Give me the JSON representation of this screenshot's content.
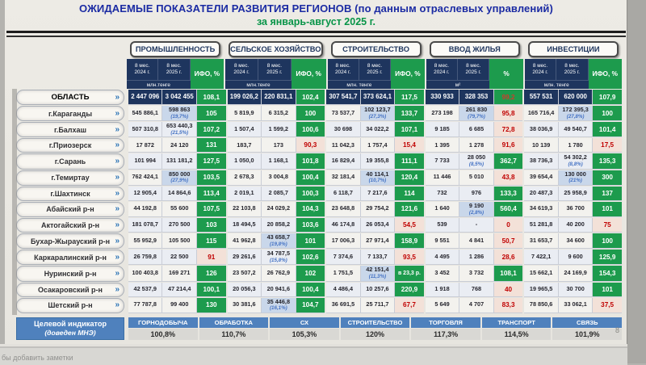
{
  "title": {
    "line1": "ОЖИДАЕМЫЕ ПОКАЗАТЕЛИ РАЗВИТИЯ РЕГИОНОВ (по данным отраслевых управлений)",
    "line2": "за январь-август 2025 г."
  },
  "icons": {
    "chevron": "»"
  },
  "colors": {
    "header_navy": "#1e355e",
    "positive_green": "#1d9b4d",
    "negative_red": "#c00000",
    "negative_bg": "#f3e1d8",
    "note_blue": "#4472c4",
    "target_blue": "#4f81bd",
    "title_blue": "#1b2ba3",
    "title_green": "#079447"
  },
  "table": {
    "groups": [
      {
        "name": "ПРОМЫШЛЕННОСТЬ",
        "col2024": "8 мес. 2024 г.",
        "col2025": "8 мес. 2025 г.",
        "ifo_label": "ИФО, %",
        "units": "млн.тенге"
      },
      {
        "name": "СЕЛЬСКОЕ ХОЗЯЙСТВО",
        "col2024": "8 мес. 2024 г.",
        "col2025": "8 мес. 2025 г.",
        "ifo_label": "ИФО, %",
        "units": "млн.тенге"
      },
      {
        "name": "СТРОИТЕЛЬСТВО",
        "col2024": "8 мес. 2024 г.",
        "col2025": "8 мес. 2025 г.",
        "ifo_label": "ИФО, %",
        "units": "млн. тенге"
      },
      {
        "name": "ВВОД ЖИЛЬЯ",
        "col2024": "8 мес. 2024 г.",
        "col2025": "8 мес. 2025 г.",
        "ifo_label": "%",
        "units": "м²"
      },
      {
        "name": "ИНВЕСТИЦИИ",
        "col2024": "8 мес. 2024 г.",
        "col2025": "8 мес. 2025 г.",
        "ifo_label": "ИФО, %",
        "units": "млн. тенге"
      }
    ],
    "rows": [
      {
        "label": "ОБЛАСТЬ",
        "cells": [
          {
            "a": "2 447 096",
            "b": "3 042 455",
            "i": "108,1",
            "c": "g"
          },
          {
            "a": "199 026,2",
            "b": "220 831,1",
            "i": "102,4",
            "c": "g"
          },
          {
            "a": "307 541,7",
            "b": "373 624,1",
            "i": "117,5",
            "c": "g"
          },
          {
            "a": "330 933",
            "b": "328 353",
            "i": "99,2",
            "c": "rg"
          },
          {
            "a": "557 531",
            "b": "620 000",
            "i": "107,9",
            "c": "g"
          }
        ]
      },
      {
        "label": "г.Караганды",
        "cells": [
          {
            "a": "545 886,1",
            "b": "598 863",
            "p": "(19,7%)",
            "i": "105",
            "c": "g"
          },
          {
            "a": "5 819,9",
            "b": "6 315,2",
            "i": "100",
            "c": "g"
          },
          {
            "a": "73 537,7",
            "b": "102 123,7",
            "p": "(27,3%)",
            "i": "133,7",
            "c": "g"
          },
          {
            "a": "273 198",
            "b": "261 830",
            "p": "(79,7%)",
            "i": "95,8",
            "c": "r"
          },
          {
            "a": "165 716,4",
            "b": "172 395,3",
            "p": "(27,8%)",
            "i": "100",
            "c": "g"
          }
        ]
      },
      {
        "label": "г.Балхаш",
        "cells": [
          {
            "a": "507 310,8",
            "b": "653 440,3",
            "p": "(21,5%)",
            "i": "107,2",
            "c": "g"
          },
          {
            "a": "1 507,4",
            "b": "1 599,2",
            "i": "100,6",
            "c": "g"
          },
          {
            "a": "30 698",
            "b": "34 022,2",
            "i": "107,1",
            "c": "g"
          },
          {
            "a": "9 185",
            "b": "6 685",
            "i": "72,8",
            "c": "r"
          },
          {
            "a": "38 036,9",
            "b": "49 540,7",
            "i": "101,4",
            "c": "g"
          }
        ]
      },
      {
        "label": "г.Приозерск",
        "cells": [
          {
            "a": "17 872",
            "b": "24 120",
            "i": "131",
            "c": "g"
          },
          {
            "a": "183,7",
            "b": "173",
            "i": "90,3",
            "c": "r"
          },
          {
            "a": "11 042,3",
            "b": "1 757,4",
            "i": "15,4",
            "c": "r"
          },
          {
            "a": "1 395",
            "b": "1 278",
            "i": "91,6",
            "c": "r"
          },
          {
            "a": "10 139",
            "b": "1 780",
            "i": "17,5",
            "c": "r"
          }
        ]
      },
      {
        "label": "г.Сарань",
        "cells": [
          {
            "a": "101 994",
            "b": "131 181,2",
            "i": "127,5",
            "c": "g"
          },
          {
            "a": "1 050,0",
            "b": "1 168,1",
            "i": "101,8",
            "c": "g"
          },
          {
            "a": "16 829,4",
            "b": "19 355,8",
            "i": "111,1",
            "c": "g"
          },
          {
            "a": "7 733",
            "b": "28 050",
            "p": "(8,5%)",
            "i": "362,7",
            "c": "g"
          },
          {
            "a": "38 736,3",
            "b": "54 302,2",
            "p": "(8,8%)",
            "i": "135,3",
            "c": "g"
          }
        ]
      },
      {
        "label": "г.Темиртау",
        "cells": [
          {
            "a": "762 424,1",
            "b": "850 000",
            "p": "(27,9%)",
            "i": "103,5",
            "c": "g"
          },
          {
            "a": "2 678,3",
            "b": "3 004,8",
            "i": "100,4",
            "c": "g"
          },
          {
            "a": "32 181,4",
            "b": "40 114,1",
            "p": "(10,7%)",
            "i": "120,4",
            "c": "g"
          },
          {
            "a": "11 446",
            "b": "5 010",
            "i": "43,8",
            "c": "r"
          },
          {
            "a": "39 654,4",
            "b": "130 000",
            "p": "(21%)",
            "i": "300",
            "c": "g"
          }
        ]
      },
      {
        "label": "г.Шахтинск",
        "cells": [
          {
            "a": "12 905,4",
            "b": "14 864,6",
            "i": "113,4",
            "c": "g"
          },
          {
            "a": "2 019,1",
            "b": "2 085,7",
            "i": "100,3",
            "c": "g"
          },
          {
            "a": "6 118,7",
            "b": "7 217,6",
            "i": "114",
            "c": "g"
          },
          {
            "a": "732",
            "b": "976",
            "i": "133,3",
            "c": "g"
          },
          {
            "a": "20 487,3",
            "b": "25 958,9",
            "i": "137",
            "c": "g"
          }
        ]
      },
      {
        "label": "Абайский р-н",
        "cells": [
          {
            "a": "44 192,8",
            "b": "55 600",
            "i": "107,5",
            "c": "g"
          },
          {
            "a": "22 103,8",
            "b": "24 029,2",
            "i": "104,3",
            "c": "g"
          },
          {
            "a": "23 648,8",
            "b": "29 754,2",
            "i": "121,6",
            "c": "g"
          },
          {
            "a": "1 640",
            "b": "9 190",
            "p": "(2,8%)",
            "i": "560,4",
            "c": "g"
          },
          {
            "a": "34 619,3",
            "b": "36 700",
            "i": "101",
            "c": "g"
          }
        ]
      },
      {
        "label": "Актогайский р-н",
        "cells": [
          {
            "a": "181 078,7",
            "b": "270 500",
            "i": "103",
            "c": "g"
          },
          {
            "a": "18 494,5",
            "b": "20 858,2",
            "i": "103,6",
            "c": "g"
          },
          {
            "a": "46 174,8",
            "b": "26 053,4",
            "i": "54,5",
            "c": "r"
          },
          {
            "a": "539",
            "b": "-",
            "i": "0",
            "c": "r"
          },
          {
            "a": "51 281,8",
            "b": "40 200",
            "i": "75",
            "c": "r"
          }
        ]
      },
      {
        "label": "Бухар-Жырауский р-н",
        "cells": [
          {
            "a": "55 952,9",
            "b": "105 500",
            "i": "115",
            "c": "g"
          },
          {
            "a": "41 962,8",
            "b": "43 658,7",
            "p": "(19,8%)",
            "i": "101",
            "c": "g"
          },
          {
            "a": "17 006,3",
            "b": "27 971,4",
            "i": "158,9",
            "c": "g"
          },
          {
            "a": "9 551",
            "b": "4 841",
            "i": "50,7",
            "c": "r"
          },
          {
            "a": "31 653,7",
            "b": "34 600",
            "i": "100",
            "c": "g"
          }
        ]
      },
      {
        "label": "Каркаралинский р-н",
        "cells": [
          {
            "a": "26 759,8",
            "b": "22 500",
            "i": "91",
            "c": "r"
          },
          {
            "a": "29 261,6",
            "b": "34 787,5",
            "p": "(15,8%)",
            "i": "102,6",
            "c": "g"
          },
          {
            "a": "7 374,6",
            "b": "7 133,7",
            "i": "93,5",
            "c": "r"
          },
          {
            "a": "4 495",
            "b": "1 286",
            "i": "28,6",
            "c": "r"
          },
          {
            "a": "7 422,1",
            "b": "9 600",
            "i": "125,9",
            "c": "g"
          }
        ]
      },
      {
        "label": "Нуринский р-н",
        "cells": [
          {
            "a": "100 403,8",
            "b": "169 271",
            "i": "126",
            "c": "g"
          },
          {
            "a": "23 507,2",
            "b": "26 762,9",
            "i": "102",
            "c": "g"
          },
          {
            "a": "1 751,5",
            "b": "42 151,4",
            "p": "(11,3%)",
            "i": "в 23,3 р.",
            "c": "g"
          },
          {
            "a": "3 452",
            "b": "3 732",
            "i": "108,1",
            "c": "g"
          },
          {
            "a": "15 662,1",
            "b": "24 169,9",
            "i": "154,3",
            "c": "g"
          }
        ]
      },
      {
        "label": "Осакаровский р-н",
        "cells": [
          {
            "a": "42 537,9",
            "b": "47 214,4",
            "i": "100,1",
            "c": "g"
          },
          {
            "a": "20 056,3",
            "b": "20 941,6",
            "i": "100,4",
            "c": "g"
          },
          {
            "a": "4 486,4",
            "b": "10 257,6",
            "i": "220,9",
            "c": "g"
          },
          {
            "a": "1 918",
            "b": "768",
            "i": "40",
            "c": "r"
          },
          {
            "a": "19 965,5",
            "b": "30 700",
            "i": "101",
            "c": "g"
          }
        ]
      },
      {
        "label": "Шетский р-н",
        "cells": [
          {
            "a": "77 787,8",
            "b": "99 400",
            "i": "130",
            "c": "g"
          },
          {
            "a": "30 381,6",
            "b": "35 446,8",
            "p": "(16,1%)",
            "i": "104,7",
            "c": "g"
          },
          {
            "a": "36 691,5",
            "b": "25 711,7",
            "i": "67,7",
            "c": "r"
          },
          {
            "a": "5 649",
            "b": "4 707",
            "i": "83,3",
            "c": "r"
          },
          {
            "a": "78 850,6",
            "b": "33 062,1",
            "i": "37,5",
            "c": "r"
          }
        ]
      }
    ]
  },
  "target": {
    "label1": "Целевой индикатор",
    "label2": "(доведен МНЭ)",
    "items": [
      {
        "name": "ГОРНОДОБЫЧА",
        "value": "100,8%"
      },
      {
        "name": "ОБРАБОТКА",
        "value": "110,7%"
      },
      {
        "name": "СХ",
        "value": "105,3%"
      },
      {
        "name": "СТРОИТЕЛЬСТВО",
        "value": "120%"
      },
      {
        "name": "ТОРГОВЛЯ",
        "value": "117,3%"
      },
      {
        "name": "ТРАНСПОРТ",
        "value": "114,5%"
      },
      {
        "name": "СВЯЗЬ",
        "value": "101,9%"
      }
    ]
  },
  "chrome": {
    "notes_placeholder": "бы добавить заметки",
    "page_number": "8"
  }
}
